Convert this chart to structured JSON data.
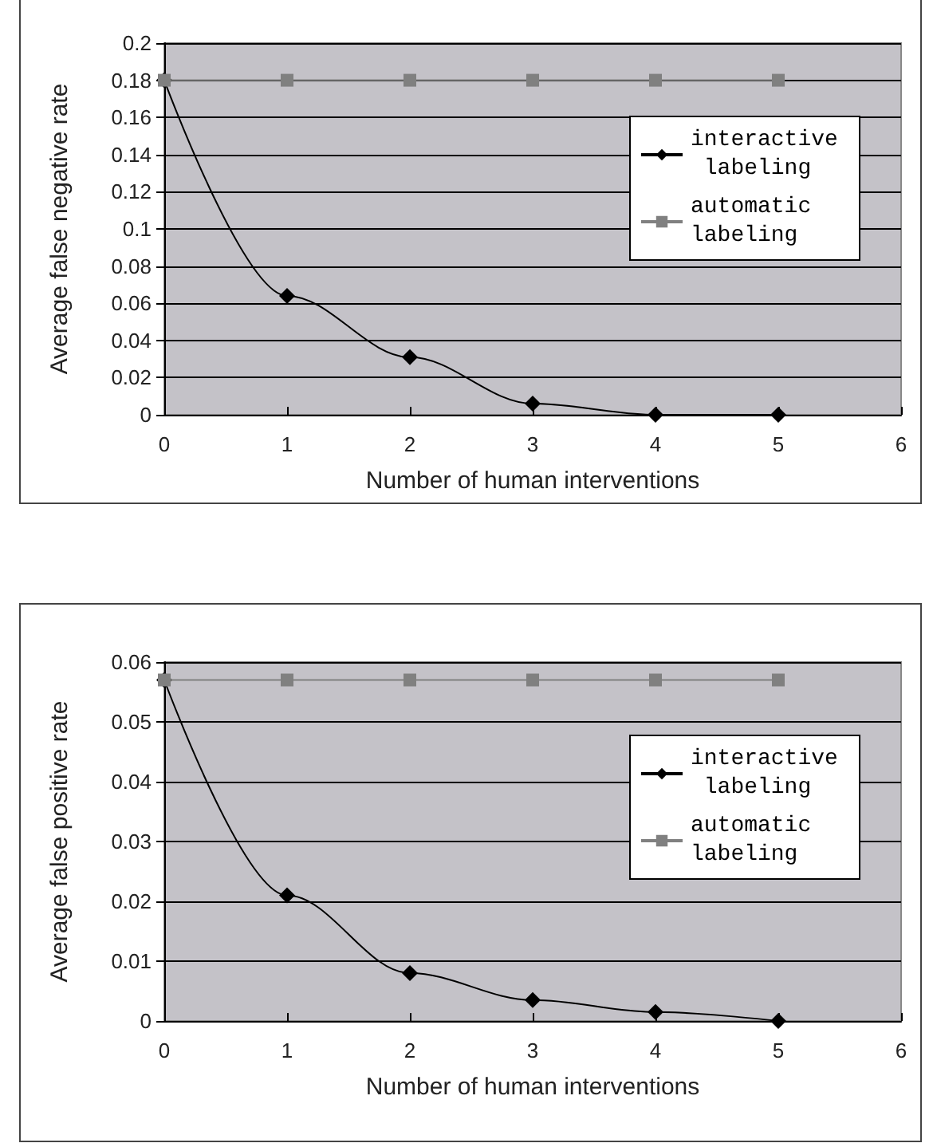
{
  "chart_data": [
    {
      "type": "line",
      "xlabel": "Number of human interventions",
      "ylabel": "Average false negative rate",
      "x": [
        0,
        1,
        2,
        3,
        4,
        5
      ],
      "series": [
        {
          "name": "interactive labeling",
          "color": "#000000",
          "marker": "diamond",
          "values": [
            0.18,
            0.064,
            0.031,
            0.006,
            0,
            0
          ]
        },
        {
          "name": "automatic labeling",
          "color": "#808080",
          "marker": "square",
          "values": [
            0.18,
            0.18,
            0.18,
            0.18,
            0.18,
            0.18
          ]
        }
      ],
      "xlim": [
        0,
        6
      ],
      "xticks": [
        0,
        1,
        2,
        3,
        4,
        5,
        6
      ],
      "ylim": [
        0,
        0.2
      ],
      "yticks": [
        0,
        0.02,
        0.04,
        0.06,
        0.08,
        0.1,
        0.12,
        0.14,
        0.16,
        0.18,
        0.2
      ],
      "grid": "y",
      "legend": "right"
    },
    {
      "type": "line",
      "xlabel": "Number of human interventions",
      "ylabel": "Average false positive rate",
      "x": [
        0,
        1,
        2,
        3,
        4,
        5
      ],
      "series": [
        {
          "name": "interactive labeling",
          "color": "#000000",
          "marker": "diamond",
          "values": [
            0.057,
            0.021,
            0.008,
            0.0035,
            0.0015,
            0
          ]
        },
        {
          "name": "automatic labeling",
          "color": "#808080",
          "marker": "square",
          "values": [
            0.057,
            0.057,
            0.057,
            0.057,
            0.057,
            0.057
          ]
        }
      ],
      "xlim": [
        0,
        6
      ],
      "xticks": [
        0,
        1,
        2,
        3,
        4,
        5,
        6
      ],
      "ylim": [
        0,
        0.06
      ],
      "yticks": [
        0,
        0.01,
        0.02,
        0.03,
        0.04,
        0.05,
        0.06
      ],
      "grid": "y",
      "legend": "right"
    }
  ]
}
